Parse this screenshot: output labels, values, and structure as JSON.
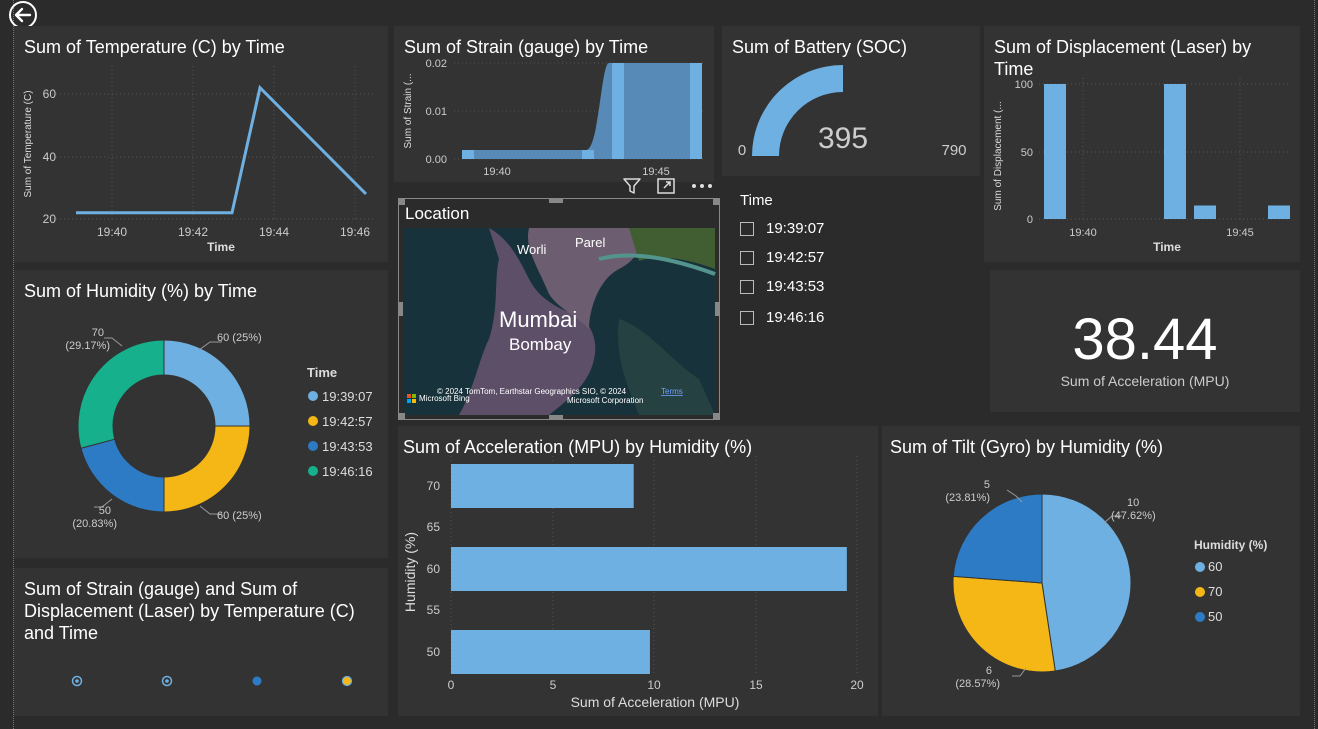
{
  "nav": {
    "back_icon": "back-arrow-icon"
  },
  "temp": {
    "title": "Sum of Temperature (C) by Time",
    "ylabel": "Sum of Temperature (C)",
    "xlabel": "Time",
    "yticks": [
      "60",
      "40",
      "20"
    ],
    "xticks": [
      "19:40",
      "19:42",
      "19:44",
      "19:46"
    ]
  },
  "strain": {
    "title": "Sum of Strain (gauge) by Time",
    "ylabel": "Sum of Strain (...",
    "yticks": [
      "0.02",
      "0.01",
      "0.00"
    ],
    "xticks": [
      "19:40",
      "19:45"
    ]
  },
  "battery": {
    "title": "Sum of Battery (SOC)",
    "value": "395",
    "min": "0",
    "max": "790"
  },
  "disp": {
    "title": "Sum of Displacement (Laser) by Time",
    "ylabel": "Sum of Displacement (...",
    "xlabel": "Time",
    "yticks": [
      "100",
      "50",
      "0"
    ],
    "xticks": [
      "19:40",
      "19:45"
    ]
  },
  "humidity": {
    "title": "Sum of Humidity (%) by Time",
    "legend_title": "Time",
    "legend": [
      {
        "label": "19:39:07",
        "color": "#6fb0e2"
      },
      {
        "label": "19:42:57",
        "color": "#f5b715"
      },
      {
        "label": "19:43:53",
        "color": "#2d7bc4"
      },
      {
        "label": "19:46:16",
        "color": "#16b08c"
      }
    ],
    "labels": {
      "a1": "60 (25%)",
      "b1": "60 (25%)",
      "c1": "50",
      "c2": "(20.83%)",
      "d1": "70",
      "d2": "(29.17%)"
    }
  },
  "location": {
    "title": "Location",
    "places": {
      "worli": "Worli",
      "parel": "Parel",
      "mumbai": "Mumbai",
      "bombay": "Bombay"
    },
    "copyright": "© 2024 TomTom, Earthstar Geographics SIO, © 2024",
    "copyright2": "Microsoft Corporation",
    "bing": "Microsoft Bing",
    "terms": "Terms"
  },
  "slicer": {
    "title": "Time",
    "items": [
      "19:39:07",
      "19:42:57",
      "19:43:53",
      "19:46:16"
    ]
  },
  "card": {
    "value": "38.44",
    "label": "Sum of Acceleration (MPU)"
  },
  "accel": {
    "title": "Sum of Acceleration (MPU) by Humidity (%)",
    "ylabel": "Humidity (%)",
    "xlabel": "Sum of Acceleration (MPU)",
    "yticks": [
      "70",
      "65",
      "60",
      "55",
      "50"
    ],
    "xticks": [
      "0",
      "5",
      "10",
      "15",
      "20"
    ]
  },
  "tilt": {
    "title": "Sum of Tilt (Gyro) by Humidity (%)",
    "legend_title": "Humidity (%)",
    "legend": [
      {
        "label": "60",
        "color": "#6fb0e2"
      },
      {
        "label": "70",
        "color": "#f5b715"
      },
      {
        "label": "50",
        "color": "#2d7bc4"
      }
    ],
    "labels": {
      "a1": "10",
      "a2": "(47.62%)",
      "b1": "6",
      "b2": "(28.57%)",
      "c1": "5",
      "c2": "(23.81%)"
    }
  },
  "strain_disp": {
    "title_l1": "Sum of Strain (gauge) and Sum of",
    "title_l2": "Displacement (Laser) by Temperature (C)",
    "title_l3": "and Time"
  },
  "chart_data": [
    {
      "type": "line",
      "title": "Sum of Temperature (C) by Time",
      "xlabel": "Time",
      "ylabel": "Sum of Temperature (C)",
      "x": [
        "19:39:07",
        "19:42:57",
        "19:43:53",
        "19:46:16"
      ],
      "values": [
        22,
        22,
        62,
        28
      ],
      "ylim": [
        20,
        65
      ]
    },
    {
      "type": "area",
      "title": "Sum of Strain (gauge) by Time",
      "ylabel": "Sum of Strain (...",
      "x": [
        "19:39:07",
        "19:42:57",
        "19:43:53",
        "19:46:16"
      ],
      "values": [
        0.002,
        0.002,
        0.02,
        0.02
      ],
      "ylim": [
        0,
        0.02
      ]
    },
    {
      "type": "bar",
      "title": "Sum of Displacement (Laser) by Time",
      "xlabel": "Time",
      "ylabel": "Sum of Displacement (...",
      "x": [
        "19:39:07",
        "19:42:57",
        "19:43:53",
        "19:46:16"
      ],
      "values": [
        100,
        100,
        10,
        10
      ],
      "ylim": [
        0,
        100
      ]
    },
    {
      "type": "pie",
      "title": "Sum of Humidity (%) by Time",
      "categories": [
        "19:39:07",
        "19:42:57",
        "19:43:53",
        "19:46:16"
      ],
      "values": [
        60,
        60,
        50,
        70
      ]
    },
    {
      "type": "bar",
      "title": "Sum of Acceleration (MPU) by Humidity (%)",
      "xlabel": "Sum of Acceleration (MPU)",
      "ylabel": "Humidity (%)",
      "categories": [
        "70",
        "60",
        "50"
      ],
      "values": [
        9,
        19.5,
        9.8
      ],
      "xlim": [
        0,
        20
      ]
    },
    {
      "type": "pie",
      "title": "Sum of Tilt (Gyro) by Humidity (%)",
      "categories": [
        "60",
        "70",
        "50"
      ],
      "values": [
        10,
        6,
        5
      ]
    }
  ]
}
